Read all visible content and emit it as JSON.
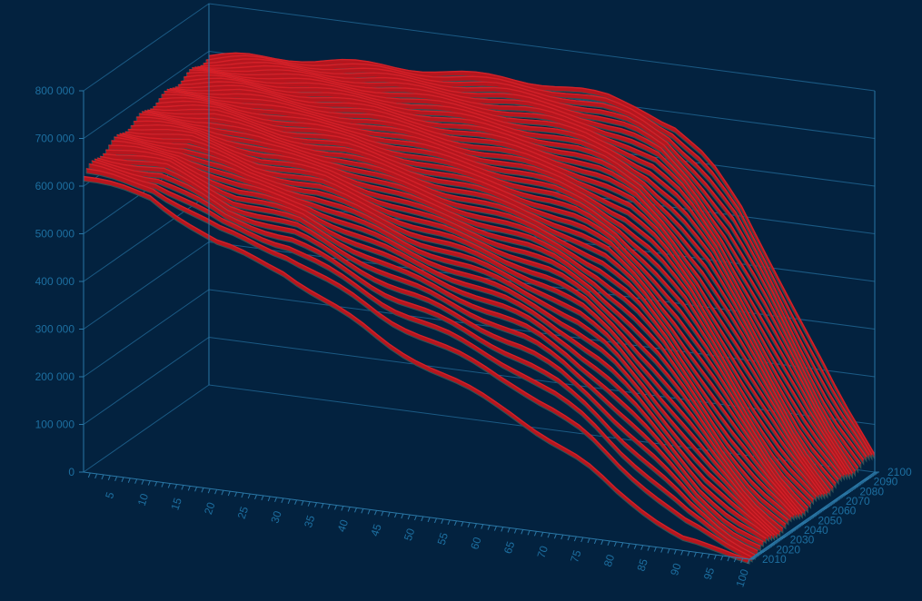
{
  "chart_data": {
    "type": "surface-3d",
    "title": "",
    "xlabel": "",
    "ylabel": "",
    "zlabel": "",
    "z_ticks": [
      "0",
      "100 000",
      "200 000",
      "300 000",
      "400 000",
      "500 000",
      "600 000",
      "700 000",
      "800 000"
    ],
    "z_range": [
      0,
      800000
    ],
    "x_ticks": [
      "5",
      "10",
      "15",
      "20",
      "25",
      "30",
      "35",
      "40",
      "45",
      "50",
      "55",
      "60",
      "65",
      "70",
      "75",
      "80",
      "85",
      "90",
      "95",
      "100"
    ],
    "x_range": [
      0,
      100
    ],
    "y_ticks": [
      "2010",
      "2020",
      "2030",
      "2040",
      "2050",
      "2060",
      "2070",
      "2080",
      "2090",
      "2100"
    ],
    "y_range": [
      2010,
      2100
    ],
    "grid": true,
    "colors": {
      "background": "#03223f",
      "surface": "#b5161e",
      "wire": "#2f5257",
      "axis": "#2a77a6"
    },
    "series_years_first": 2010,
    "series_years_last": 2100,
    "profile_first": {
      "year": 2010,
      "x": [
        0,
        5,
        10,
        15,
        20,
        25,
        30,
        35,
        40,
        45,
        50,
        55,
        60,
        65,
        70,
        75,
        80,
        85,
        90,
        95,
        100
      ],
      "values": [
        620000,
        610000,
        600000,
        560000,
        520000,
        500000,
        480000,
        440000,
        400000,
        360000,
        330000,
        300000,
        270000,
        240000,
        200000,
        160000,
        110000,
        70000,
        30000,
        10000,
        0
      ]
    },
    "profile_last": {
      "year": 2100,
      "x": [
        0,
        5,
        10,
        15,
        20,
        25,
        30,
        35,
        40,
        45,
        50,
        55,
        60,
        65,
        70,
        75,
        80,
        85,
        90,
        95,
        100
      ],
      "values": [
        690000,
        700000,
        705000,
        710000,
        715000,
        718000,
        720000,
        722000,
        724000,
        726000,
        725000,
        722000,
        715000,
        700000,
        670000,
        610000,
        520000,
        400000,
        270000,
        140000,
        40000
      ]
    }
  }
}
